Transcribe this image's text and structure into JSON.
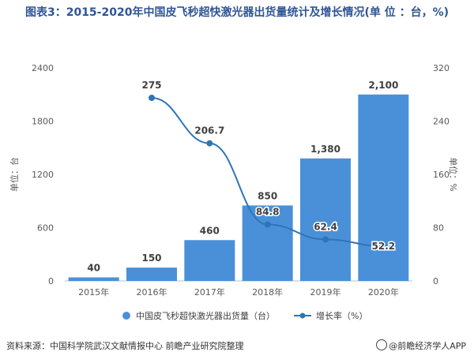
{
  "chart_data": {
    "type": "bar",
    "title": "图表3：2015-2020年中国皮飞秒超快激光器出货量统计及增长情况(单 位 ：台，%)",
    "categories": [
      "2015年",
      "2016年",
      "2017年",
      "2018年",
      "2019年",
      "2020年"
    ],
    "series": [
      {
        "name": "中国皮飞秒超快激光器出货量（台）",
        "type": "bar",
        "axis": "left",
        "color": "#4a90d9",
        "values": [
          40,
          150,
          460,
          850,
          1380,
          2100
        ],
        "labels": [
          "40",
          "150",
          "460",
          "850",
          "1,380",
          "2,100"
        ]
      },
      {
        "name": "增长率（%）",
        "type": "line",
        "axis": "right",
        "color": "#2e75b6",
        "values": [
          null,
          275,
          206.7,
          84.8,
          62.4,
          52.2
        ],
        "labels": [
          "",
          "275",
          "206.7",
          "84.8",
          "62.4",
          "52.2"
        ]
      }
    ],
    "y_left": {
      "label": "单位：台",
      "min": 0,
      "max": 2400,
      "ticks": [
        "0",
        "600",
        "1200",
        "1800",
        "2400"
      ]
    },
    "y_right": {
      "label": "单位：%",
      "min": 0,
      "max": 320,
      "ticks": [
        "0",
        "80",
        "160",
        "240",
        "320"
      ]
    },
    "grid": false,
    "legend_position": "bottom"
  },
  "footer": {
    "source": "资料来源：中国科学院武汉文献情报中心 前瞻产业研究院整理",
    "brand": "@前瞻经济学人APP"
  }
}
